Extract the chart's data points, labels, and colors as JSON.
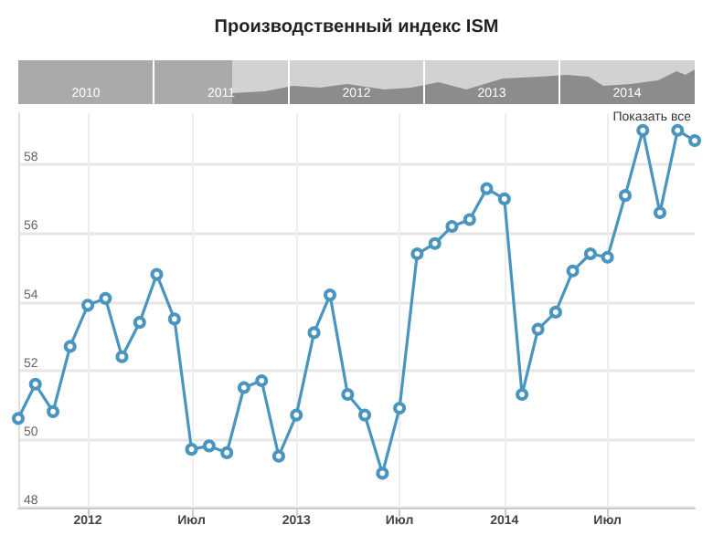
{
  "chart_data": {
    "type": "line",
    "title": "Производственный индекс ISM",
    "annotations": [
      "2010",
      "2011",
      "2012",
      "2013",
      "2014",
      "Показать все"
    ],
    "x": [
      "2011-09",
      "2011-10",
      "2011-11",
      "2011-12",
      "2012-01",
      "2012-02",
      "2012-03",
      "2012-04",
      "2012-05",
      "2012-06",
      "2012-07",
      "2012-08",
      "2012-09",
      "2012-10",
      "2012-11",
      "2012-12",
      "2013-01",
      "2013-02",
      "2013-03",
      "2013-04",
      "2013-05",
      "2013-06",
      "2013-07",
      "2013-08",
      "2013-09",
      "2013-10",
      "2013-11",
      "2013-12",
      "2014-01",
      "2014-02",
      "2014-03",
      "2014-04",
      "2014-05",
      "2014-06",
      "2014-07",
      "2014-08",
      "2014-09",
      "2014-10",
      "2014-11",
      "2014-12"
    ],
    "series": [
      {
        "color": "#4a95bf",
        "values": [
          50.6,
          51.6,
          50.8,
          52.7,
          53.9,
          54.1,
          52.4,
          53.4,
          54.8,
          53.5,
          49.7,
          49.8,
          49.6,
          51.5,
          51.7,
          49.5,
          50.7,
          53.1,
          54.2,
          51.3,
          50.7,
          49.0,
          50.9,
          55.4,
          55.7,
          56.2,
          56.4,
          57.3,
          57.0,
          51.3,
          53.2,
          53.7,
          54.9,
          55.4,
          55.3,
          57.1,
          59.0,
          56.6,
          59.0,
          58.7
        ]
      }
    ],
    "xlim": [
      "2011-09",
      "2014-12"
    ],
    "xticks": [
      {
        "value": "2012-01",
        "label": "2012"
      },
      {
        "value": "2012-07",
        "label": "Июл"
      },
      {
        "value": "2013-01",
        "label": "2013"
      },
      {
        "value": "2013-07",
        "label": "Июл"
      },
      {
        "value": "2014-01",
        "label": "2014"
      },
      {
        "value": "2014-07",
        "label": "Июл"
      }
    ],
    "ylim": [
      48,
      59.5
    ],
    "yticks": [
      48,
      50,
      52,
      54,
      56,
      58
    ],
    "grid": true,
    "marker": "circle",
    "line_style": "solid"
  }
}
